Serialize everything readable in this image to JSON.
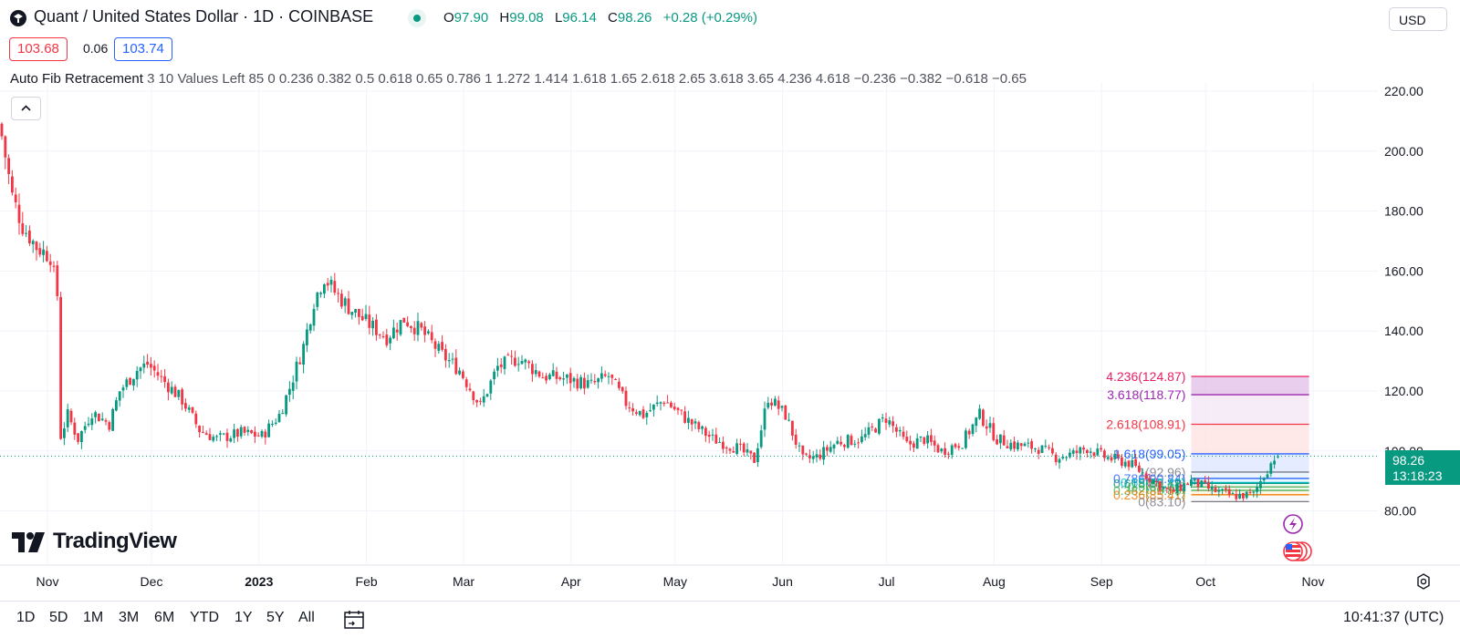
{
  "header": {
    "title": "Quant / United States Dollar · 1D · COINBASE",
    "ohlc": [
      {
        "key": "O",
        "value": "97.90"
      },
      {
        "key": "H",
        "value": "99.08"
      },
      {
        "key": "L",
        "value": "96.14"
      },
      {
        "key": "C",
        "value": "98.26"
      },
      {
        "key": "",
        "value": "+0.28 (+0.29%)"
      }
    ],
    "currency": "USD",
    "sell_price": "103.68",
    "spread": "0.06",
    "buy_price": "103.74",
    "indicator_name": "Auto Fib Retracement",
    "indicator_params": "3 10 Values Left 85 0 0.236 0.382 0.5 0.618 0.65 0.786 1 1.272 1.414 1.618 1.65 2.618 2.65 3.618 3.65 4.236 4.618 −0.236 −0.382 −0.618 −0.65"
  },
  "watermark": "TradingView",
  "last_price": {
    "price": "98.26",
    "countdown": "13:18:23",
    "color": "#089981"
  },
  "ranges": [
    "1D",
    "5D",
    "1M",
    "3M",
    "6M",
    "YTD",
    "1Y",
    "5Y",
    "All"
  ],
  "clock": "10:41:37 (UTC)",
  "colors": {
    "up": "#089981",
    "down": "#f23645",
    "grid": "#f0f3fa"
  },
  "icons": [
    "symbol-logo-icon",
    "live-status-icon",
    "collapse-up-icon",
    "calendar-goto-icon",
    "settings-gear-icon",
    "flash-event-icon",
    "us-flag-event-icon"
  ],
  "chart_data": {
    "type": "candlestick",
    "title": "Quant / United States Dollar · 1D · COINBASE",
    "y_axis": {
      "labels": [
        "220.00",
        "200.00",
        "180.00",
        "160.00",
        "140.00",
        "120.00",
        "100.00",
        "80.00"
      ],
      "ylim": [
        62,
        236
      ]
    },
    "x_axis": {
      "labels": [
        "Nov",
        "Dec",
        "2023",
        "Feb",
        "Mar",
        "Apr",
        "May",
        "Jun",
        "Jul",
        "Aug",
        "Sep",
        "Oct",
        "Nov"
      ],
      "start_date": "2022-10-22",
      "days_per_label_month": true
    },
    "close_path": [
      [
        "2022-10-22",
        205
      ],
      [
        "2022-10-25",
        185
      ],
      [
        "2022-10-28",
        175
      ],
      [
        "2022-11-01",
        168
      ],
      [
        "2022-11-05",
        165
      ],
      [
        "2022-11-07",
        152
      ],
      [
        "2022-11-08",
        105
      ],
      [
        "2022-11-10",
        112
      ],
      [
        "2022-11-13",
        104
      ],
      [
        "2022-11-17",
        113
      ],
      [
        "2022-11-22",
        109
      ],
      [
        "2022-11-25",
        120
      ],
      [
        "2022-11-30",
        127
      ],
      [
        "2022-12-03",
        129
      ],
      [
        "2022-12-08",
        123
      ],
      [
        "2022-12-13",
        117
      ],
      [
        "2022-12-18",
        107
      ],
      [
        "2022-12-23",
        104
      ],
      [
        "2022-12-30",
        106
      ],
      [
        "2023-01-05",
        105
      ],
      [
        "2023-01-10",
        112
      ],
      [
        "2023-01-13",
        121
      ],
      [
        "2023-01-17",
        135
      ],
      [
        "2023-01-20",
        150
      ],
      [
        "2023-01-23",
        158
      ],
      [
        "2023-01-26",
        153
      ],
      [
        "2023-01-30",
        148
      ],
      [
        "2023-02-04",
        143
      ],
      [
        "2023-02-10",
        138
      ],
      [
        "2023-02-15",
        144
      ],
      [
        "2023-02-20",
        140
      ],
      [
        "2023-02-26",
        132
      ],
      [
        "2023-03-03",
        127
      ],
      [
        "2023-03-09",
        115
      ],
      [
        "2023-03-14",
        128
      ],
      [
        "2023-03-20",
        131
      ],
      [
        "2023-03-27",
        125
      ],
      [
        "2023-04-03",
        124
      ],
      [
        "2023-04-10",
        122
      ],
      [
        "2023-04-15",
        125
      ],
      [
        "2023-04-20",
        116
      ],
      [
        "2023-04-25",
        112
      ],
      [
        "2023-05-01",
        117
      ],
      [
        "2023-05-08",
        110
      ],
      [
        "2023-05-15",
        104
      ],
      [
        "2023-05-22",
        101
      ],
      [
        "2023-05-27",
        97
      ],
      [
        "2023-05-31",
        118
      ],
      [
        "2023-06-05",
        112
      ],
      [
        "2023-06-10",
        97
      ],
      [
        "2023-06-14",
        98
      ],
      [
        "2023-06-20",
        103
      ],
      [
        "2023-06-27",
        104
      ],
      [
        "2023-07-04",
        111
      ],
      [
        "2023-07-10",
        102
      ],
      [
        "2023-07-15",
        104
      ],
      [
        "2023-07-20",
        100
      ],
      [
        "2023-07-26",
        103
      ],
      [
        "2023-07-31",
        112
      ],
      [
        "2023-08-05",
        104
      ],
      [
        "2023-08-10",
        102
      ],
      [
        "2023-08-17",
        101
      ],
      [
        "2023-08-22",
        98
      ],
      [
        "2023-08-27",
        99
      ],
      [
        "2023-08-31",
        101
      ],
      [
        "2023-09-05",
        98
      ],
      [
        "2023-09-12",
        96
      ],
      [
        "2023-09-18",
        91
      ],
      [
        "2023-09-24",
        86
      ],
      [
        "2023-09-30",
        90
      ],
      [
        "2023-10-06",
        87
      ],
      [
        "2023-10-12",
        85
      ],
      [
        "2023-10-18",
        85.5
      ],
      [
        "2023-10-20",
        90
      ],
      [
        "2023-10-24",
        97.9
      ],
      [
        "2023-10-25",
        98.26
      ]
    ],
    "fib_levels": [
      {
        "label": "4.236(124.87)",
        "value": 124.87,
        "color": "#e91e63"
      },
      {
        "label": "3.618(118.77)",
        "value": 118.77,
        "color": "#9c27b0"
      },
      {
        "label": "2.618(108.91)",
        "value": 108.91,
        "color": "#f23645"
      },
      {
        "label": "1.618(99.05)",
        "value": 99.05,
        "color": "#2962ff"
      },
      {
        "label": "1(92.96)",
        "value": 92.96,
        "color": "#787b86"
      },
      {
        "label": "0.786(90.84)",
        "value": 90.84,
        "color": "#2962ff"
      },
      {
        "label": "0.65(89.49)",
        "value": 89.49,
        "color": "#00bcd4"
      },
      {
        "label": "0.618(89.18)",
        "value": 89.18,
        "color": "#089981"
      },
      {
        "label": "0.5(88.01)",
        "value": 88.01,
        "color": "#4caf50"
      },
      {
        "label": "0.382(86.85)",
        "value": 86.85,
        "color": "#4caf50"
      },
      {
        "label": "0.236(85.41)",
        "value": 85.41,
        "color": "#f57c00"
      },
      {
        "label": "0(83.10)",
        "value": 83.1,
        "color": "#787b86"
      }
    ],
    "fib_start_date": "2023-09-30",
    "fib_end_date": "2023-11-03",
    "last_value": 98.26,
    "grid": true
  }
}
